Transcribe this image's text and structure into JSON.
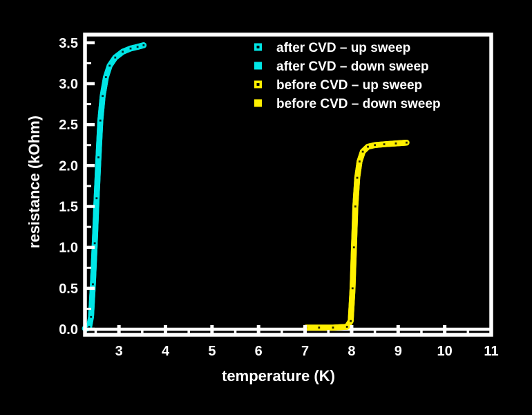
{
  "figure": {
    "background": "#000000",
    "frame_color": "#ffffff",
    "text_color": "#ffffff"
  },
  "chart_data": {
    "type": "line",
    "title": "",
    "xlabel": "temperature (K)",
    "ylabel": "resistance (kOhm)",
    "xlim": [
      2.27,
      11.0
    ],
    "ylim": [
      0.0,
      3.6
    ],
    "x_major_ticks": [
      3,
      4,
      5,
      6,
      7,
      8,
      9,
      10,
      11
    ],
    "x_tick_labels": [
      "3",
      "4",
      "5",
      "6",
      "7",
      "8",
      "9",
      "10",
      "11"
    ],
    "x_minor_step": 0.5,
    "y_major_ticks": [
      0.0,
      0.5,
      1.0,
      1.5,
      2.0,
      2.5,
      3.0,
      3.5
    ],
    "y_tick_labels": [
      "0.0",
      "0.5",
      "1.0",
      "1.5",
      "2.0",
      "2.5",
      "3.0",
      "3.5"
    ],
    "y_minor_step": 0.25,
    "grid": false,
    "zero_baseline": true,
    "legend_position": "top-right-inside",
    "series": [
      {
        "name": "after CVD – up sweep",
        "color": "#00e6e6",
        "marker": "open-square",
        "points": [
          [
            2.27,
            0.01
          ],
          [
            2.32,
            0.01
          ],
          [
            2.36,
            0.03
          ],
          [
            2.4,
            0.15
          ],
          [
            2.44,
            0.55
          ],
          [
            2.48,
            1.05
          ],
          [
            2.52,
            1.6
          ],
          [
            2.56,
            2.1
          ],
          [
            2.6,
            2.55
          ],
          [
            2.65,
            2.85
          ],
          [
            2.72,
            3.08
          ],
          [
            2.8,
            3.22
          ],
          [
            2.92,
            3.32
          ],
          [
            3.08,
            3.39
          ],
          [
            3.25,
            3.43
          ],
          [
            3.4,
            3.45
          ],
          [
            3.53,
            3.47
          ]
        ]
      },
      {
        "name": "after CVD – down sweep",
        "color": "#00e6e6",
        "marker": "filled-square",
        "points": [
          [
            2.27,
            0.01
          ],
          [
            2.32,
            0.01
          ],
          [
            2.36,
            0.03
          ],
          [
            2.4,
            0.15
          ],
          [
            2.44,
            0.55
          ],
          [
            2.48,
            1.05
          ],
          [
            2.52,
            1.6
          ],
          [
            2.56,
            2.1
          ],
          [
            2.6,
            2.55
          ],
          [
            2.65,
            2.85
          ],
          [
            2.72,
            3.08
          ],
          [
            2.8,
            3.22
          ],
          [
            2.92,
            3.32
          ],
          [
            3.08,
            3.39
          ],
          [
            3.25,
            3.43
          ],
          [
            3.4,
            3.45
          ],
          [
            3.53,
            3.47
          ]
        ]
      },
      {
        "name": "before CVD – up sweep",
        "color": "#fff000",
        "marker": "open-square",
        "points": [
          [
            7.02,
            0.02
          ],
          [
            7.3,
            0.02
          ],
          [
            7.6,
            0.02
          ],
          [
            7.9,
            0.03
          ],
          [
            7.98,
            0.1
          ],
          [
            8.02,
            0.5
          ],
          [
            8.05,
            1.0
          ],
          [
            8.08,
            1.5
          ],
          [
            8.12,
            1.85
          ],
          [
            8.17,
            2.05
          ],
          [
            8.24,
            2.17
          ],
          [
            8.35,
            2.23
          ],
          [
            8.5,
            2.25
          ],
          [
            8.7,
            2.26
          ],
          [
            8.95,
            2.27
          ],
          [
            9.18,
            2.28
          ]
        ]
      },
      {
        "name": "before CVD – down sweep",
        "color": "#fff000",
        "marker": "filled-square",
        "points": [
          [
            7.02,
            0.02
          ],
          [
            7.3,
            0.02
          ],
          [
            7.6,
            0.02
          ],
          [
            7.9,
            0.03
          ],
          [
            7.98,
            0.1
          ],
          [
            8.02,
            0.5
          ],
          [
            8.05,
            1.0
          ],
          [
            8.08,
            1.5
          ],
          [
            8.12,
            1.85
          ],
          [
            8.17,
            2.05
          ],
          [
            8.24,
            2.17
          ],
          [
            8.35,
            2.23
          ],
          [
            8.5,
            2.25
          ],
          [
            8.7,
            2.26
          ],
          [
            8.95,
            2.27
          ],
          [
            9.18,
            2.28
          ]
        ]
      }
    ]
  }
}
